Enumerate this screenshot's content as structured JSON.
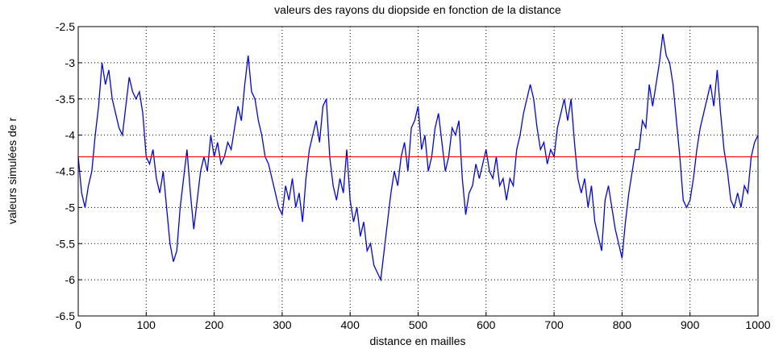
{
  "chart_data": {
    "type": "line",
    "title": "valeurs des rayons du diopside en fonction de la distance",
    "x_label": "distance en mailles",
    "y_label": "valeurs simulées de r",
    "x": [
      0,
      5,
      10,
      15,
      20,
      25,
      30,
      35,
      40,
      45,
      50,
      55,
      60,
      65,
      70,
      75,
      80,
      85,
      90,
      95,
      100,
      105,
      110,
      115,
      120,
      125,
      130,
      135,
      140,
      145,
      150,
      155,
      160,
      165,
      170,
      175,
      180,
      185,
      190,
      195,
      200,
      205,
      210,
      215,
      220,
      225,
      230,
      235,
      240,
      245,
      250,
      255,
      260,
      265,
      270,
      275,
      280,
      285,
      290,
      295,
      300,
      305,
      310,
      315,
      320,
      325,
      330,
      335,
      340,
      345,
      350,
      355,
      360,
      365,
      370,
      375,
      380,
      385,
      390,
      395,
      400,
      405,
      410,
      415,
      420,
      425,
      430,
      435,
      440,
      445,
      450,
      455,
      460,
      465,
      470,
      475,
      480,
      485,
      490,
      495,
      500,
      505,
      510,
      515,
      520,
      525,
      530,
      535,
      540,
      545,
      550,
      555,
      560,
      565,
      570,
      575,
      580,
      585,
      590,
      595,
      600,
      605,
      610,
      615,
      620,
      625,
      630,
      635,
      640,
      645,
      650,
      655,
      660,
      665,
      670,
      675,
      680,
      685,
      690,
      695,
      700,
      705,
      710,
      715,
      720,
      725,
      730,
      735,
      740,
      745,
      750,
      755,
      760,
      765,
      770,
      775,
      780,
      785,
      790,
      795,
      800,
      805,
      810,
      815,
      820,
      825,
      830,
      835,
      840,
      845,
      850,
      855,
      860,
      865,
      870,
      875,
      880,
      885,
      890,
      895,
      900,
      905,
      910,
      915,
      920,
      925,
      930,
      935,
      940,
      945,
      950,
      955,
      960,
      965,
      970,
      975,
      980,
      985,
      990,
      995,
      1000
    ],
    "series": [
      {
        "color": "#0000ff",
        "values": [
          -4.3,
          -4.8,
          -5.0,
          -4.7,
          -4.5,
          -4.0,
          -3.6,
          -3.0,
          -3.3,
          -3.1,
          -3.5,
          -3.7,
          -3.9,
          -4.0,
          -3.6,
          -3.2,
          -3.4,
          -3.5,
          -3.4,
          -3.7,
          -4.3,
          -4.4,
          -4.2,
          -4.6,
          -4.8,
          -4.5,
          -5.0,
          -5.5,
          -5.75,
          -5.6,
          -5.0,
          -4.6,
          -4.2,
          -4.8,
          -5.3,
          -4.9,
          -4.5,
          -4.3,
          -4.5,
          -4.0,
          -4.3,
          -4.1,
          -4.4,
          -4.3,
          -4.1,
          -4.2,
          -3.9,
          -3.6,
          -3.8,
          -3.3,
          -2.9,
          -3.4,
          -3.5,
          -3.8,
          -4.0,
          -4.3,
          -4.4,
          -4.6,
          -4.8,
          -5.0,
          -5.1,
          -4.7,
          -4.9,
          -4.6,
          -5.0,
          -4.8,
          -5.2,
          -4.6,
          -4.2,
          -4.0,
          -3.8,
          -4.1,
          -3.6,
          -3.5,
          -4.3,
          -4.7,
          -4.9,
          -4.6,
          -4.8,
          -4.2,
          -4.9,
          -5.2,
          -5.0,
          -5.4,
          -5.2,
          -5.6,
          -5.5,
          -5.8,
          -5.9,
          -6.0,
          -5.6,
          -5.2,
          -4.8,
          -4.5,
          -4.7,
          -4.3,
          -4.1,
          -4.5,
          -3.9,
          -3.8,
          -3.6,
          -4.2,
          -4.0,
          -4.5,
          -4.3,
          -3.9,
          -3.7,
          -4.1,
          -4.5,
          -4.3,
          -3.9,
          -4.0,
          -3.8,
          -4.6,
          -5.1,
          -4.8,
          -4.7,
          -4.4,
          -4.6,
          -4.4,
          -4.2,
          -4.5,
          -4.6,
          -4.3,
          -4.7,
          -4.6,
          -4.9,
          -4.6,
          -4.7,
          -4.2,
          -4.0,
          -3.7,
          -3.5,
          -3.3,
          -3.5,
          -3.9,
          -4.2,
          -4.1,
          -4.4,
          -4.2,
          -4.3,
          -3.9,
          -3.7,
          -3.5,
          -3.8,
          -3.5,
          -4.1,
          -4.6,
          -4.8,
          -4.6,
          -5.0,
          -4.7,
          -5.2,
          -5.4,
          -5.6,
          -4.9,
          -4.7,
          -5.0,
          -5.3,
          -5.5,
          -5.7,
          -5.2,
          -4.8,
          -4.5,
          -4.2,
          -4.2,
          -3.8,
          -3.9,
          -3.3,
          -3.6,
          -3.3,
          -3.0,
          -2.6,
          -2.9,
          -3.0,
          -3.3,
          -3.8,
          -4.3,
          -4.9,
          -5.0,
          -4.9,
          -4.6,
          -4.2,
          -3.9,
          -3.7,
          -3.5,
          -3.3,
          -3.6,
          -3.1,
          -3.7,
          -4.2,
          -4.5,
          -4.9,
          -5.0,
          -4.8,
          -5.0,
          -4.7,
          -4.8,
          -4.3,
          -4.1,
          -4.0
        ]
      }
    ],
    "reference_line": {
      "value": -4.3,
      "color": "#ff0000"
    },
    "xlim": [
      0,
      1000
    ],
    "xticks": [
      0,
      100,
      200,
      300,
      400,
      500,
      600,
      700,
      800,
      900,
      1000
    ],
    "ylim": [
      -6.5,
      -2.5
    ],
    "yticks": [
      -6.5,
      -6,
      -5.5,
      -5,
      -4.5,
      -4,
      -3.5,
      -3,
      -2.5
    ],
    "grid": true
  }
}
